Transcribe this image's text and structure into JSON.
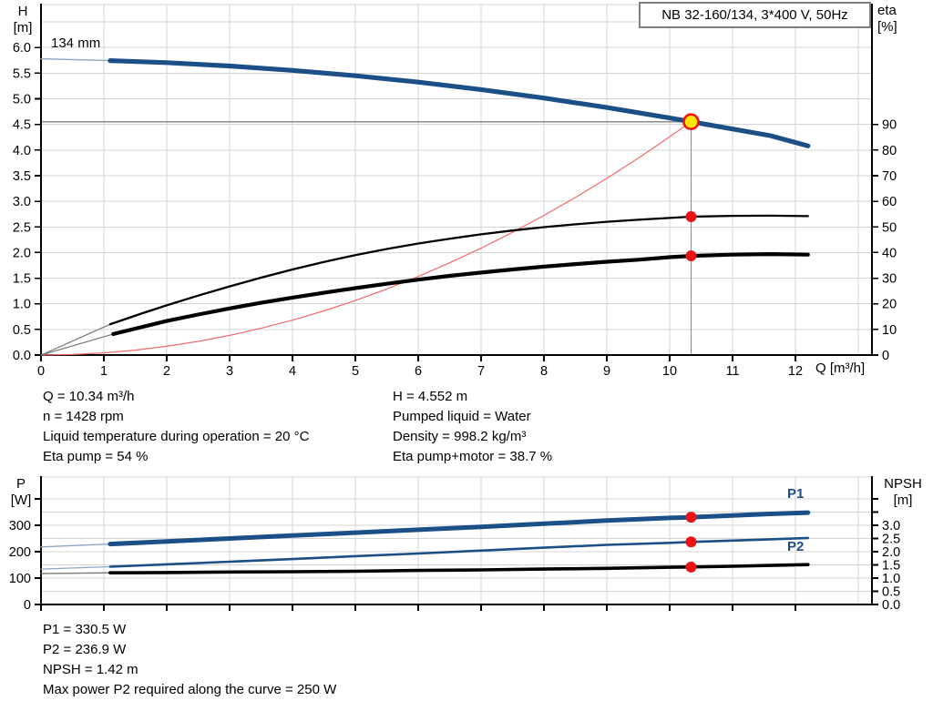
{
  "window": {
    "title_box": "NB 32-160/134, 3*400 V, 50Hz"
  },
  "colors": {
    "curve_blue": "#1b4f87",
    "curve_black": "#000000",
    "system_red": "#f26a6a",
    "dot_red": "#ea1414",
    "duty_yellow": "#ffe60a",
    "grid": "#d4d4d4",
    "helper_gray": "#8a8a8a",
    "lead_gray": "#787878",
    "lead_blue": "#8ba6c6",
    "axis_black": "#000000"
  },
  "chart_data": [
    {
      "id": "head-efficiency-chart",
      "type": "line",
      "impeller_label": "134 mm",
      "x_axis": {
        "label": "Q [m³/h]",
        "min": 0,
        "max": 13.2,
        "tick_values": [
          0,
          1,
          2,
          3,
          4,
          5,
          6,
          7,
          8,
          9,
          10,
          11,
          12
        ],
        "tick_labels": [
          "0",
          "1",
          "2",
          "3",
          "4",
          "5",
          "6",
          "7",
          "8",
          "9",
          "10",
          "11",
          "12"
        ],
        "grid_values": [
          1,
          2,
          3,
          4,
          5,
          6,
          7,
          8,
          9,
          10,
          11,
          12,
          13
        ]
      },
      "y_left": {
        "name": "H",
        "unit": "[m]",
        "min": 0,
        "max": 6.84,
        "tick_values": [
          0,
          0.5,
          1,
          1.5,
          2,
          2.5,
          3,
          3.5,
          4,
          4.5,
          5,
          5.5,
          6
        ],
        "tick_labels": [
          "0.0",
          "0.5",
          "1.0",
          "1.5",
          "2.0",
          "2.5",
          "3.0",
          "3.5",
          "4.0",
          "4.5",
          "5.0",
          "5.5",
          "6.0"
        ],
        "extra_ticks": []
      },
      "y_right": {
        "name": "eta",
        "unit": "[%]",
        "min": 0,
        "max": 137,
        "tick_values": [
          0,
          10,
          20,
          30,
          40,
          50,
          60,
          70,
          80,
          90
        ],
        "tick_labels": [
          "0",
          "10",
          "20",
          "30",
          "40",
          "50",
          "60",
          "70",
          "80",
          "90"
        ],
        "extra_ticks": []
      },
      "h_grid": {
        "axis": "left",
        "values": [
          0.5,
          1,
          1.5,
          2,
          2.5,
          3,
          3.5,
          4,
          4.5,
          5,
          5.5,
          6,
          6.5
        ]
      },
      "series": [
        {
          "name": "system-curve",
          "axis": "left",
          "color_key": "system_red",
          "width": 1.2,
          "points": [
            [
              0,
              0
            ],
            [
              0.5,
              0.011
            ],
            [
              1,
              0.043
            ],
            [
              1.5,
              0.096
            ],
            [
              2,
              0.17
            ],
            [
              2.5,
              0.266
            ],
            [
              3,
              0.383
            ],
            [
              3.5,
              0.522
            ],
            [
              4,
              0.681
            ],
            [
              4.5,
              0.862
            ],
            [
              5,
              1.064
            ],
            [
              5.5,
              1.288
            ],
            [
              6,
              1.533
            ],
            [
              6.5,
              1.799
            ],
            [
              7,
              2.086
            ],
            [
              7.5,
              2.395
            ],
            [
              8,
              2.724
            ],
            [
              8.5,
              3.075
            ],
            [
              9,
              3.448
            ],
            [
              9.5,
              3.841
            ],
            [
              10,
              4.257
            ],
            [
              10.34,
              4.552
            ]
          ]
        },
        {
          "name": "head-curve-134mm",
          "axis": "left",
          "color_key": "curve_blue",
          "width": 5.2,
          "lead_color_key": "lead_blue",
          "lead_width": 1.4,
          "lead": [
            [
              0,
              5.78
            ],
            [
              1.1,
              5.745
            ]
          ],
          "points": [
            [
              1.1,
              5.745
            ],
            [
              2,
              5.705
            ],
            [
              3,
              5.64
            ],
            [
              4,
              5.555
            ],
            [
              5,
              5.45
            ],
            [
              6,
              5.325
            ],
            [
              7,
              5.18
            ],
            [
              8,
              5.015
            ],
            [
              9,
              4.83
            ],
            [
              10,
              4.625
            ],
            [
              10.34,
              4.552
            ],
            [
              11,
              4.41
            ],
            [
              11.6,
              4.28
            ],
            [
              12.2,
              4.08
            ]
          ]
        },
        {
          "name": "eta-pump-curve",
          "axis": "right",
          "color_key": "curve_black",
          "width": 2.3,
          "lead_color_key": "lead_gray",
          "lead_width": 1.2,
          "lead": [
            [
              0,
              0
            ],
            [
              1.1,
              12
            ]
          ],
          "points": [
            [
              1.1,
              12
            ],
            [
              1.6,
              16.2
            ],
            [
              2,
              19.4
            ],
            [
              2.5,
              23.2
            ],
            [
              3,
              26.8
            ],
            [
              3.5,
              30.2
            ],
            [
              4,
              33.4
            ],
            [
              4.5,
              36.3
            ],
            [
              5,
              39
            ],
            [
              5.5,
              41.4
            ],
            [
              6,
              43.5
            ],
            [
              6.5,
              45.4
            ],
            [
              7,
              47.1
            ],
            [
              7.5,
              48.6
            ],
            [
              8,
              49.9
            ],
            [
              8.5,
              51
            ],
            [
              9,
              52
            ],
            [
              9.5,
              52.8
            ],
            [
              10,
              53.5
            ],
            [
              10.34,
              54
            ],
            [
              11,
              54.3
            ],
            [
              11.6,
              54.4
            ],
            [
              12.2,
              54.2
            ]
          ]
        },
        {
          "name": "eta-pump-motor-curve",
          "axis": "right",
          "color_key": "curve_black",
          "width": 4.2,
          "lead_color_key": "lead_gray",
          "lead_width": 1.2,
          "lead": [
            [
              0,
              0
            ],
            [
              1.15,
              8.2
            ]
          ],
          "points": [
            [
              1.15,
              8.2
            ],
            [
              2,
              13.3
            ],
            [
              2.5,
              15.8
            ],
            [
              3,
              18.2
            ],
            [
              3.5,
              20.4
            ],
            [
              4,
              22.4
            ],
            [
              4.5,
              24.3
            ],
            [
              5,
              26.1
            ],
            [
              5.5,
              27.8
            ],
            [
              6,
              29.4
            ],
            [
              6.5,
              30.9
            ],
            [
              7,
              32.2
            ],
            [
              7.5,
              33.4
            ],
            [
              8,
              34.5
            ],
            [
              8.5,
              35.5
            ],
            [
              9,
              36.4
            ],
            [
              9.5,
              37.2
            ],
            [
              10,
              38.2
            ],
            [
              10.34,
              38.7
            ],
            [
              11,
              39.2
            ],
            [
              11.6,
              39.4
            ],
            [
              12.2,
              39.2
            ]
          ]
        }
      ],
      "duty_point": {
        "q": 10.34,
        "value": 4.552,
        "axis": "left"
      },
      "duty_dots": [
        {
          "q": 10.34,
          "value": 54,
          "axis": "right"
        },
        {
          "q": 10.34,
          "value": 38.7,
          "axis": "right"
        }
      ]
    },
    {
      "id": "power-npsh-chart",
      "type": "line",
      "x_axis": {
        "label": "",
        "min": 0,
        "max": 13.2,
        "tick_values": [
          0,
          1,
          2,
          3,
          4,
          5,
          6,
          7,
          8,
          9,
          10,
          11,
          12
        ],
        "tick_labels": null,
        "grid_values": [
          1,
          2,
          3,
          4,
          5,
          6,
          7,
          8,
          9,
          10,
          11,
          12,
          13
        ]
      },
      "y_left": {
        "name": "P",
        "unit": "[W]",
        "min": 0,
        "max": 483,
        "tick_values": [
          0,
          100,
          200,
          300
        ],
        "tick_labels": [
          "0",
          "100",
          "200",
          "300"
        ],
        "extra_ticks": [
          400
        ]
      },
      "y_right": {
        "name": "NPSH",
        "unit": "[m]",
        "min": 0,
        "max": 4.83,
        "tick_values": [
          0,
          0.5,
          1,
          1.5,
          2,
          2.5,
          3
        ],
        "tick_labels": [
          "0.0",
          "0.5",
          "1.0",
          "1.5",
          "2.0",
          "2.5",
          "3.0"
        ],
        "extra_ticks": [
          3.5,
          4
        ]
      },
      "h_grid": {
        "axis": "right",
        "values": [
          0.5,
          1,
          1.5,
          2,
          2.5,
          3,
          3.5,
          4
        ]
      },
      "series": [
        {
          "name": "p1-curve",
          "axis": "left",
          "color_key": "curve_blue",
          "width": 5,
          "lead_color_key": "lead_blue",
          "lead_width": 1.4,
          "lead": [
            [
              0,
              218
            ],
            [
              1.1,
              229
            ]
          ],
          "points": [
            [
              1.1,
              229
            ],
            [
              2,
              239
            ],
            [
              3,
              250
            ],
            [
              4,
              261
            ],
            [
              5,
              272
            ],
            [
              6,
              283
            ],
            [
              7,
              294
            ],
            [
              8,
              306
            ],
            [
              9,
              318
            ],
            [
              10,
              328
            ],
            [
              10.34,
              330.5
            ],
            [
              11,
              337
            ],
            [
              11.6,
              343
            ],
            [
              12.2,
              348
            ]
          ]
        },
        {
          "name": "p2-curve",
          "axis": "left",
          "color_key": "curve_blue",
          "width": 2.6,
          "lead_color_key": "lead_blue",
          "lead_width": 1.2,
          "lead": [
            [
              0,
              134
            ],
            [
              1.1,
              143
            ]
          ],
          "points": [
            [
              1.1,
              143
            ],
            [
              2,
              152
            ],
            [
              3,
              162
            ],
            [
              4,
              172
            ],
            [
              5,
              183
            ],
            [
              6,
              193
            ],
            [
              7,
              204
            ],
            [
              8,
              215
            ],
            [
              9,
              226
            ],
            [
              10,
              233.5
            ],
            [
              10.34,
              236.9
            ],
            [
              11,
              242
            ],
            [
              11.6,
              247
            ],
            [
              12.2,
              252
            ]
          ]
        },
        {
          "name": "npsh-curve",
          "axis": "right",
          "color_key": "curve_black",
          "width": 3.6,
          "lead_color_key": "lead_gray",
          "lead_width": 1.4,
          "lead": [
            [
              0,
              1.17
            ],
            [
              1.1,
              1.2
            ]
          ],
          "points": [
            [
              1.1,
              1.2
            ],
            [
              2,
              1.21
            ],
            [
              3,
              1.23
            ],
            [
              4,
              1.24
            ],
            [
              5,
              1.26
            ],
            [
              6,
              1.29
            ],
            [
              7,
              1.31
            ],
            [
              8,
              1.34
            ],
            [
              9,
              1.37
            ],
            [
              10,
              1.41
            ],
            [
              10.34,
              1.42
            ],
            [
              11,
              1.45
            ],
            [
              11.6,
              1.48
            ],
            [
              12.2,
              1.51
            ]
          ]
        }
      ],
      "duty_point": null,
      "duty_dots": [
        {
          "q": 10.34,
          "value": 330.5,
          "axis": "left"
        },
        {
          "q": 10.34,
          "value": 236.9,
          "axis": "left"
        },
        {
          "q": 10.34,
          "value": 1.42,
          "axis": "right"
        }
      ],
      "series_labels": [
        {
          "text": "P1"
        },
        {
          "text": "P2"
        }
      ]
    }
  ],
  "info_top_left": {
    "lines": [
      "Q = 10.34 m³/h",
      "n = 1428 rpm",
      "Liquid temperature during operation = 20 °C",
      "Eta pump = 54 %"
    ]
  },
  "info_top_right": {
    "lines": [
      "H = 4.552 m",
      "Pumped liquid = Water",
      "Density = 998.2 kg/m³",
      "Eta pump+motor = 38.7 %"
    ]
  },
  "info_bottom": {
    "lines": [
      "P1 = 330.5 W",
      "P2 = 236.9 W",
      "NPSH = 1.42 m",
      "Max power P2 required along the curve = 250 W"
    ]
  }
}
